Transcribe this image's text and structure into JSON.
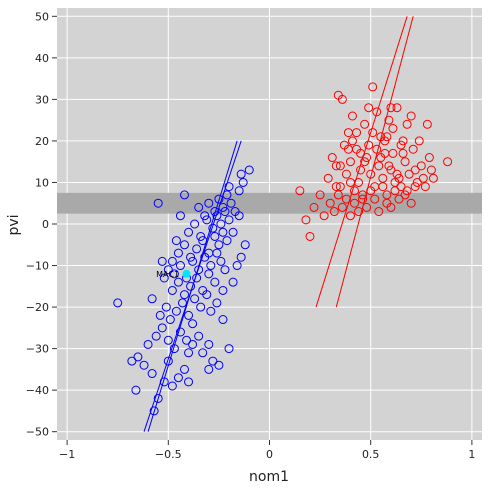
{
  "chart_data": {
    "type": "scatter",
    "title": "",
    "xlabel": "nom1",
    "ylabel": "pvi",
    "xlim": [
      -1.05,
      1.05
    ],
    "ylim": [
      -52,
      52
    ],
    "x_ticks": [
      -1,
      -0.5,
      0,
      0.5,
      1
    ],
    "x_tick_labels": [
      "−1",
      "−0.5",
      "0",
      "0.5",
      "1"
    ],
    "y_ticks": [
      -50,
      -40,
      -30,
      -20,
      -10,
      0,
      10,
      20,
      30,
      40,
      50
    ],
    "y_tick_labels": [
      "−50",
      "−40",
      "−30",
      "−20",
      "−10",
      "0",
      "10",
      "20",
      "30",
      "40",
      "50"
    ],
    "grid": true,
    "background": "#d3d3d3",
    "grid_color": "#ffffff",
    "shaded_band": {
      "y_from": 2.5,
      "y_to": 7.5,
      "color": "#a9a9a9"
    },
    "series": [
      {
        "color": "#0000ff",
        "marker": "open-circle",
        "points": [
          [
            -0.62,
            -34
          ],
          [
            -0.65,
            -32
          ],
          [
            -0.58,
            -36
          ],
          [
            -0.55,
            -42
          ],
          [
            -0.52,
            -38
          ],
          [
            -0.48,
            -39
          ],
          [
            -0.5,
            -33
          ],
          [
            -0.45,
            -37
          ],
          [
            -0.42,
            -35
          ],
          [
            -0.4,
            -31
          ],
          [
            -0.6,
            -29
          ],
          [
            -0.56,
            -27
          ],
          [
            -0.53,
            -25
          ],
          [
            -0.5,
            -28
          ],
          [
            -0.47,
            -30
          ],
          [
            -0.44,
            -26
          ],
          [
            -0.41,
            -28
          ],
          [
            -0.38,
            -24
          ],
          [
            -0.35,
            -27
          ],
          [
            -0.3,
            -29
          ],
          [
            -0.28,
            -33
          ],
          [
            -0.25,
            -34
          ],
          [
            -0.68,
            -33
          ],
          [
            -0.66,
            -40
          ],
          [
            -0.57,
            -45
          ],
          [
            -0.54,
            -22
          ],
          [
            -0.51,
            -20
          ],
          [
            -0.49,
            -23
          ],
          [
            -0.46,
            -21
          ],
          [
            -0.43,
            -19
          ],
          [
            -0.4,
            -22
          ],
          [
            -0.37,
            -18
          ],
          [
            -0.34,
            -20
          ],
          [
            -0.31,
            -17
          ],
          [
            -0.29,
            -21
          ],
          [
            -0.26,
            -19
          ],
          [
            -0.23,
            -16
          ],
          [
            -0.48,
            -16
          ],
          [
            -0.45,
            -14
          ],
          [
            -0.42,
            -17
          ],
          [
            -0.39,
            -15
          ],
          [
            -0.36,
            -13
          ],
          [
            -0.33,
            -16
          ],
          [
            -0.3,
            -12
          ],
          [
            -0.27,
            -14
          ],
          [
            -0.52,
            -13
          ],
          [
            -0.5,
            -11
          ],
          [
            -0.47,
            -12
          ],
          [
            -0.44,
            -10
          ],
          [
            -0.41,
            -13
          ],
          [
            -0.38,
            -9
          ],
          [
            -0.35,
            -11
          ],
          [
            -0.32,
            -8
          ],
          [
            -0.29,
            -10
          ],
          [
            -0.26,
            -7
          ],
          [
            -0.24,
            -9
          ],
          [
            -0.22,
            -11
          ],
          [
            -0.45,
            -7
          ],
          [
            -0.42,
            -5
          ],
          [
            -0.39,
            -8
          ],
          [
            -0.36,
            -6
          ],
          [
            -0.33,
            -4
          ],
          [
            -0.3,
            -7
          ],
          [
            -0.27,
            -3
          ],
          [
            -0.25,
            -5
          ],
          [
            -0.23,
            -2
          ],
          [
            -0.21,
            -4
          ],
          [
            -0.4,
            -2
          ],
          [
            -0.37,
            0
          ],
          [
            -0.34,
            -3
          ],
          [
            -0.31,
            1
          ],
          [
            -0.28,
            -1
          ],
          [
            -0.26,
            2
          ],
          [
            -0.24,
            0
          ],
          [
            -0.22,
            3
          ],
          [
            -0.2,
            1
          ],
          [
            -0.18,
            -2
          ],
          [
            -0.35,
            4
          ],
          [
            -0.32,
            2
          ],
          [
            -0.3,
            5
          ],
          [
            -0.27,
            3
          ],
          [
            -0.25,
            6
          ],
          [
            -0.23,
            4
          ],
          [
            -0.21,
            7
          ],
          [
            -0.19,
            5
          ],
          [
            -0.17,
            3
          ],
          [
            -0.15,
            8
          ],
          [
            -0.13,
            10
          ],
          [
            -0.1,
            13
          ],
          [
            -0.14,
            12
          ],
          [
            -0.2,
            9
          ],
          [
            -0.42,
            7
          ],
          [
            -0.55,
            5
          ],
          [
            -0.75,
            -19
          ],
          [
            -0.58,
            -18
          ],
          [
            -0.46,
            -4
          ],
          [
            -0.44,
            2
          ],
          [
            -0.48,
            -9
          ],
          [
            -0.53,
            -9
          ],
          [
            -0.4,
            -38
          ],
          [
            -0.38,
            -29
          ],
          [
            -0.33,
            -31
          ],
          [
            -0.23,
            -23
          ],
          [
            -0.2,
            -30
          ],
          [
            -0.18,
            -14
          ],
          [
            -0.16,
            -10
          ],
          [
            -0.14,
            -8
          ],
          [
            -0.12,
            -5
          ],
          [
            -0.3,
            -35
          ],
          [
            -0.15,
            2
          ]
        ]
      },
      {
        "color": "#ff0000",
        "marker": "open-circle",
        "points": [
          [
            0.15,
            8
          ],
          [
            0.18,
            1
          ],
          [
            0.2,
            -3
          ],
          [
            0.22,
            4
          ],
          [
            0.25,
            7
          ],
          [
            0.27,
            2
          ],
          [
            0.29,
            11
          ],
          [
            0.31,
            16
          ],
          [
            0.33,
            14
          ],
          [
            0.35,
            9
          ],
          [
            0.37,
            19
          ],
          [
            0.34,
            31
          ],
          [
            0.36,
            30
          ],
          [
            0.39,
            22
          ],
          [
            0.41,
            26
          ],
          [
            0.43,
            18
          ],
          [
            0.45,
            13
          ],
          [
            0.47,
            24
          ],
          [
            0.49,
            28
          ],
          [
            0.51,
            33
          ],
          [
            0.53,
            27
          ],
          [
            0.55,
            21
          ],
          [
            0.57,
            17
          ],
          [
            0.59,
            25
          ],
          [
            0.61,
            23
          ],
          [
            0.63,
            28
          ],
          [
            0.65,
            19
          ],
          [
            0.67,
            15
          ],
          [
            0.69,
            12
          ],
          [
            0.71,
            18
          ],
          [
            0.73,
            10
          ],
          [
            0.75,
            14
          ],
          [
            0.77,
            9
          ],
          [
            0.79,
            16
          ],
          [
            0.81,
            11
          ],
          [
            0.88,
            15
          ],
          [
            0.38,
            12
          ],
          [
            0.4,
            15
          ],
          [
            0.42,
            8
          ],
          [
            0.44,
            10
          ],
          [
            0.46,
            6
          ],
          [
            0.48,
            16
          ],
          [
            0.5,
            12
          ],
          [
            0.52,
            9
          ],
          [
            0.54,
            14
          ],
          [
            0.56,
            11
          ],
          [
            0.58,
            7
          ],
          [
            0.6,
            13
          ],
          [
            0.62,
            10
          ],
          [
            0.64,
            6
          ],
          [
            0.66,
            17
          ],
          [
            0.68,
            8
          ],
          [
            0.7,
            5
          ],
          [
            0.72,
            13
          ],
          [
            0.74,
            20
          ],
          [
            0.76,
            11
          ],
          [
            0.78,
            24
          ],
          [
            0.8,
            13
          ],
          [
            0.3,
            5
          ],
          [
            0.32,
            3
          ],
          [
            0.34,
            7
          ],
          [
            0.36,
            4
          ],
          [
            0.38,
            6
          ],
          [
            0.4,
            2
          ],
          [
            0.42,
            5
          ],
          [
            0.44,
            3
          ],
          [
            0.46,
            7
          ],
          [
            0.48,
            4
          ],
          [
            0.5,
            8
          ],
          [
            0.52,
            6
          ],
          [
            0.54,
            3
          ],
          [
            0.56,
            9
          ],
          [
            0.58,
            5
          ],
          [
            0.6,
            4
          ],
          [
            0.62,
            8
          ],
          [
            0.64,
            11
          ],
          [
            0.66,
            20
          ],
          [
            0.68,
            24
          ],
          [
            0.7,
            26
          ],
          [
            0.41,
            20
          ],
          [
            0.43,
            22
          ],
          [
            0.45,
            17
          ],
          [
            0.47,
            15
          ],
          [
            0.49,
            19
          ],
          [
            0.51,
            22
          ],
          [
            0.53,
            18
          ],
          [
            0.55,
            16
          ],
          [
            0.57,
            20
          ],
          [
            0.59,
            14
          ],
          [
            0.61,
            17
          ],
          [
            0.63,
            12
          ],
          [
            0.65,
            9
          ],
          [
            0.67,
            7
          ],
          [
            0.4,
            10
          ],
          [
            0.35,
            14
          ],
          [
            0.33,
            9
          ],
          [
            0.39,
            18
          ],
          [
            0.6,
            28
          ],
          [
            0.58,
            21
          ],
          [
            0.72,
            9
          ]
        ]
      }
    ],
    "regression_lines": [
      {
        "color": "#0000ff",
        "x1": -0.62,
        "y1": -50,
        "x2": -0.14,
        "y2": 20
      },
      {
        "color": "#0000ff",
        "x1": -0.6,
        "y1": -50,
        "x2": -0.16,
        "y2": 20
      },
      {
        "color": "#ff0000",
        "x1": 0.23,
        "y1": -20,
        "x2": 0.68,
        "y2": 50
      },
      {
        "color": "#ff0000",
        "x1": 0.33,
        "y1": -20,
        "x2": 0.71,
        "y2": 50
      }
    ],
    "annotation": {
      "text": "MAC1",
      "x": -0.56,
      "y": -12
    },
    "highlight_point": {
      "x": -0.41,
      "y": -12,
      "color": "#00e5ff"
    }
  }
}
